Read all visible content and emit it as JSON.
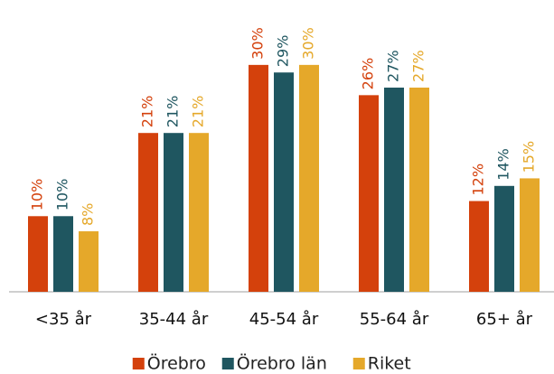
{
  "chart_data": {
    "type": "bar",
    "categories": [
      "<35 år",
      "35-44 år",
      "45-54 år",
      "55-64 år",
      "65+ år"
    ],
    "series": [
      {
        "name": "Örebro",
        "color": "#d4410c",
        "values": [
          10,
          21,
          30,
          26,
          12
        ],
        "value_labels": [
          "10%",
          "21%",
          "30%",
          "26%",
          "12%"
        ]
      },
      {
        "name": "Örebro län",
        "color": "#1f5660",
        "values": [
          10,
          21,
          29,
          27,
          14
        ],
        "value_labels": [
          "10%",
          "21%",
          "29%",
          "27%",
          "14%"
        ]
      },
      {
        "name": "Riket",
        "color": "#e5a82a",
        "values": [
          8,
          21,
          30,
          27,
          15
        ],
        "value_labels": [
          "8%",
          "21%",
          "30%",
          "27%",
          "15%"
        ]
      }
    ],
    "ylim": [
      0,
      35
    ],
    "legend": "bottom"
  }
}
